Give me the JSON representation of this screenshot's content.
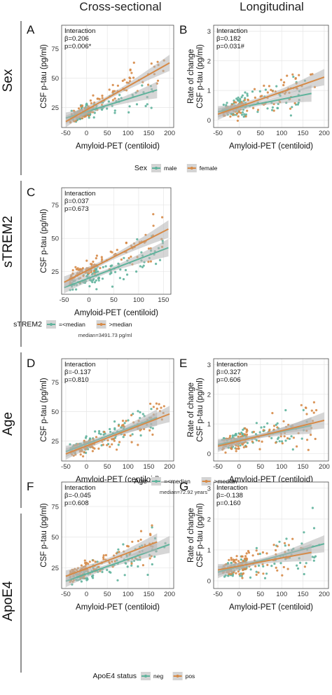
{
  "figure": {
    "column_titles": [
      "Cross-sectional",
      "Longitudinal"
    ],
    "row_titles": [
      "Sex",
      "sTREM2",
      "Age",
      "ApoE4"
    ]
  },
  "colors": {
    "group1": "#5fb39c",
    "group2": "#d68a47",
    "ci_band": "#b4b4b4"
  },
  "legends": [
    {
      "id": "sex",
      "title": "Sex",
      "labels": [
        "male",
        "female"
      ],
      "note": ""
    },
    {
      "id": "strem2",
      "title": "sTREM2",
      "labels": [
        "=<median",
        ">median"
      ],
      "note": "median=3491.73 pg/ml"
    },
    {
      "id": "age",
      "title": "Age",
      "labels": [
        "=<median",
        ">median"
      ],
      "note": "median=72.92 years"
    },
    {
      "id": "apoe4",
      "title": "ApoE4 status",
      "labels": [
        "neg",
        "pos"
      ],
      "note": ""
    }
  ],
  "chart_data": [
    {
      "panel": "A",
      "type": "scatter",
      "annotation": [
        "Interaction",
        "β=0.206",
        "p=0.006*"
      ],
      "xlabel": "Amyloid-PET (centiloid)",
      "ylabel": "CSF p-tau (pg/ml)",
      "xlim": [
        -60,
        210
      ],
      "ylim": [
        8,
        95
      ],
      "xticks": [
        -50,
        0,
        50,
        100,
        150,
        200
      ],
      "yticks": [
        25,
        50,
        75
      ],
      "series": [
        {
          "name": "male",
          "fit": [
            [
              -50,
              16
            ],
            [
              170,
              40
            ]
          ]
        },
        {
          "name": "female",
          "fit": [
            [
              -50,
              13
            ],
            [
              200,
              63
            ]
          ]
        }
      ]
    },
    {
      "panel": "B",
      "type": "scatter",
      "annotation": [
        "Interaction",
        "β=0.182",
        "p=0.031#"
      ],
      "xlabel": "Amyloid-PET (centiloid)",
      "ylabel_lines": [
        "Rate of change",
        "CSF p-tau (pg/ml)"
      ],
      "xlim": [
        -60,
        210
      ],
      "ylim": [
        -0.25,
        3.2
      ],
      "xticks": [
        -50,
        0,
        50,
        100,
        150,
        200
      ],
      "yticks": [
        0,
        1,
        2,
        3
      ],
      "series": [
        {
          "name": "male",
          "fit": [
            [
              -50,
              0.28
            ],
            [
              170,
              0.9
            ]
          ]
        },
        {
          "name": "female",
          "fit": [
            [
              -50,
              0.2
            ],
            [
              200,
              1.45
            ]
          ]
        }
      ]
    },
    {
      "panel": "C",
      "type": "scatter",
      "annotation": [
        "Interaction",
        "β=0.037",
        "p=0.673"
      ],
      "xlabel": "Amyloid-PET (centiloid)",
      "ylabel": "CSF p-tau (pg/ml)",
      "xlim": [
        -55,
        165
      ],
      "ylim": [
        8,
        88
      ],
      "xticks": [
        -50,
        0,
        50,
        100,
        150
      ],
      "yticks": [
        25,
        50,
        75
      ],
      "series": [
        {
          "name": "=<median",
          "fit": [
            [
              -50,
              13
            ],
            [
              160,
              43
            ]
          ]
        },
        {
          "name": ">median",
          "fit": [
            [
              -50,
              17
            ],
            [
              160,
              57
            ]
          ]
        }
      ]
    },
    {
      "panel": "D",
      "type": "scatter",
      "annotation": [
        "Interaction",
        "β=-0.137",
        "p=0.810"
      ],
      "xlabel": "Amyloid-PET (centiloid)",
      "ylabel": "CSF p-tau (pg/ml)",
      "xlim": [
        -60,
        210
      ],
      "ylim": [
        8,
        95
      ],
      "xticks": [
        -50,
        0,
        50,
        100,
        150,
        200
      ],
      "yticks": [
        25,
        50,
        75
      ],
      "series": [
        {
          "name": "=<median",
          "fit": [
            [
              -50,
              16
            ],
            [
              170,
              45
            ]
          ]
        },
        {
          "name": ">median",
          "fit": [
            [
              -50,
              14
            ],
            [
              200,
              48
            ]
          ]
        }
      ]
    },
    {
      "panel": "E",
      "type": "scatter",
      "annotation": [
        "Interaction",
        "β=0.327",
        "p=0.606"
      ],
      "xlabel": "Amyloid-PET (centiloid)",
      "ylabel_lines": [
        "Rate of change",
        "CSF p-tau (pg/ml)"
      ],
      "xlim": [
        -60,
        210
      ],
      "ylim": [
        -0.25,
        3.2
      ],
      "xticks": [
        -50,
        0,
        50,
        100,
        150,
        200
      ],
      "yticks": [
        0,
        1,
        2,
        3
      ],
      "series": [
        {
          "name": "=<median",
          "fit": [
            [
              -50,
              0.3
            ],
            [
              170,
              0.95
            ]
          ]
        },
        {
          "name": ">median",
          "fit": [
            [
              -50,
              0.25
            ],
            [
              200,
              1.12
            ]
          ]
        }
      ]
    },
    {
      "panel": "F",
      "type": "scatter",
      "annotation": [
        "Interaction",
        "β=-0.045",
        "p=0.608"
      ],
      "xlabel": "Amyloid-PET (centiloid)",
      "ylabel": "CSF p-tau (pg/ml)",
      "xlim": [
        -60,
        210
      ],
      "ylim": [
        8,
        95
      ],
      "xticks": [
        -50,
        0,
        50,
        100,
        150,
        200
      ],
      "yticks": [
        25,
        50,
        75
      ],
      "series": [
        {
          "name": "neg",
          "fit": [
            [
              -50,
              14
            ],
            [
              200,
              44
            ]
          ]
        },
        {
          "name": "pos",
          "fit": [
            [
              -50,
              18
            ],
            [
              170,
              46
            ]
          ]
        }
      ]
    },
    {
      "panel": "G",
      "type": "scatter",
      "annotation": [
        "Interaction",
        "β=-0.138",
        "p=0.160"
      ],
      "xlabel": "Amyloid-PET (centiloid)",
      "ylabel_lines": [
        "Rate of change",
        "CSF p-tau (pg/ml)"
      ],
      "xlim": [
        -60,
        210
      ],
      "ylim": [
        -0.25,
        3.2
      ],
      "xticks": [
        -50,
        0,
        50,
        100,
        150,
        200
      ],
      "yticks": [
        0,
        1,
        2,
        3
      ],
      "series": [
        {
          "name": "neg",
          "fit": [
            [
              -50,
              0.28
            ],
            [
              200,
              1.2
            ]
          ]
        },
        {
          "name": "pos",
          "fit": [
            [
              -50,
              0.35
            ],
            [
              170,
              0.92
            ]
          ]
        }
      ]
    }
  ]
}
